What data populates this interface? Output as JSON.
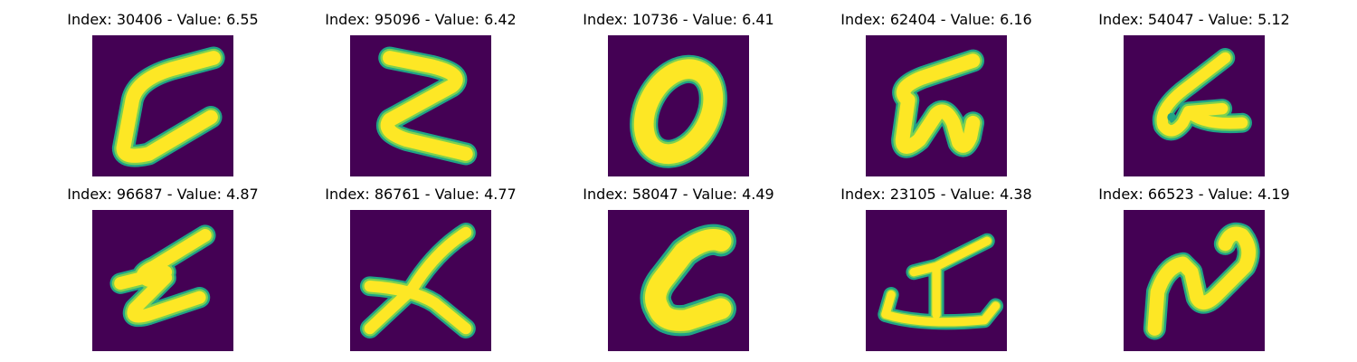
{
  "colors": {
    "background": "#440154",
    "stroke_outer": "#20a386",
    "stroke_mid": "#7ad151",
    "stroke_core": "#fde725"
  },
  "panels": [
    {
      "title": "Index: 30406 - Value: 6.55",
      "icon": "handwritten-glyph-c"
    },
    {
      "title": "Index: 95096 - Value: 6.42",
      "icon": "handwritten-glyph-z"
    },
    {
      "title": "Index: 10736 - Value: 6.41",
      "icon": "handwritten-glyph-0"
    },
    {
      "title": "Index: 62404 - Value: 6.16",
      "icon": "handwritten-glyph-5"
    },
    {
      "title": "Index: 54047 - Value: 5.12",
      "icon": "handwritten-glyph-6"
    },
    {
      "title": "Index: 96687 - Value: 4.87",
      "icon": "handwritten-glyph-z"
    },
    {
      "title": "Index: 86761 - Value: 4.77",
      "icon": "handwritten-glyph-x"
    },
    {
      "title": "Index: 58047 - Value: 4.49",
      "icon": "handwritten-glyph-c"
    },
    {
      "title": "Index: 23105 - Value: 4.38",
      "icon": "handwritten-glyph-symbol"
    },
    {
      "title": "Index: 66523 - Value: 4.19",
      "icon": "handwritten-glyph-n"
    }
  ]
}
